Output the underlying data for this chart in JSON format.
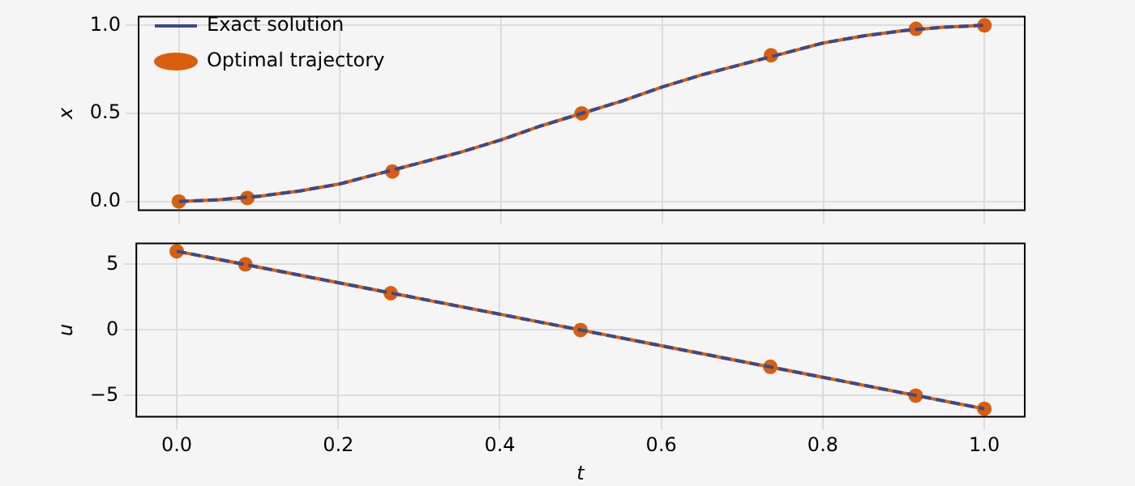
{
  "chart_data": [
    {
      "type": "line",
      "ylabel": "x",
      "xlim": [
        -0.05,
        1.05
      ],
      "xticks": [
        0,
        0.2,
        0.4,
        0.6,
        0.8,
        1
      ],
      "ylim": [
        -0.05,
        1.05
      ],
      "yticks": [
        {
          "value": 0,
          "label": "0.0"
        },
        {
          "value": 0.5,
          "label": "0.5"
        },
        {
          "value": 1,
          "label": "1.0"
        }
      ],
      "grid": true,
      "legend": "top left",
      "tick_labels": "y",
      "series": [
        {
          "type": "line",
          "color": "#d95f0e",
          "line_style": "solid",
          "marker": "none",
          "x": [
            0,
            0.05,
            0.1,
            0.15,
            0.2,
            0.25,
            0.3,
            0.35,
            0.4,
            0.45,
            0.5,
            0.55,
            0.6,
            0.65,
            0.7,
            0.75,
            0.8,
            0.85,
            0.9,
            0.95,
            1
          ],
          "values": [
            0,
            0.01,
            0.03,
            0.06,
            0.1,
            0.16,
            0.22,
            0.28,
            0.35,
            0.43,
            0.5,
            0.57,
            0.65,
            0.72,
            0.78,
            0.84,
            0.9,
            0.94,
            0.97,
            0.99,
            1
          ]
        },
        {
          "type": "scatter",
          "name": "Optimal trajectory",
          "color": "#d95f0e",
          "marker": "circle",
          "x": [
            0,
            0.085,
            0.265,
            0.5,
            0.735,
            0.915,
            1
          ],
          "values": [
            0,
            0.02,
            0.17,
            0.5,
            0.83,
            0.98,
            1
          ]
        },
        {
          "type": "line",
          "name": "Exact solution",
          "color": "#3a4a8c",
          "line_style": "dashed",
          "marker": "none",
          "x": [
            0,
            0.05,
            0.1,
            0.15,
            0.2,
            0.25,
            0.3,
            0.35,
            0.4,
            0.45,
            0.5,
            0.55,
            0.6,
            0.65,
            0.7,
            0.75,
            0.8,
            0.85,
            0.9,
            0.95,
            1
          ],
          "values": [
            0,
            0.01,
            0.03,
            0.06,
            0.1,
            0.16,
            0.22,
            0.28,
            0.35,
            0.43,
            0.5,
            0.57,
            0.65,
            0.72,
            0.78,
            0.84,
            0.9,
            0.94,
            0.97,
            0.99,
            1
          ]
        }
      ]
    },
    {
      "type": "line",
      "xlabel": "t",
      "ylabel": "u",
      "xlim": [
        -0.05,
        1.05
      ],
      "xticks": [
        {
          "value": 0,
          "label": "0.0"
        },
        {
          "value": 0.2,
          "label": "0.2"
        },
        {
          "value": 0.4,
          "label": "0.4"
        },
        {
          "value": 0.6,
          "label": "0.6"
        },
        {
          "value": 0.8,
          "label": "0.8"
        },
        {
          "value": 1,
          "label": "1.0"
        }
      ],
      "ylim": [
        -6.6,
        6.6
      ],
      "yticks": [
        {
          "value": -5,
          "label": "−5"
        },
        0,
        5
      ],
      "grid": true,
      "series": [
        {
          "type": "line",
          "color": "#d95f0e",
          "line_style": "solid",
          "marker": "none",
          "x": [
            0,
            1
          ],
          "values": [
            6,
            -6
          ]
        },
        {
          "type": "scatter",
          "color": "#d95f0e",
          "marker": "circle",
          "x": [
            0,
            0.085,
            0.265,
            0.5,
            0.735,
            0.915,
            1
          ],
          "values": [
            6,
            5,
            2.8,
            0,
            -2.8,
            -5,
            -6
          ]
        },
        {
          "type": "line",
          "color": "#3a4a8c",
          "line_style": "dashed",
          "marker": "none",
          "x": [
            0,
            1
          ],
          "values": [
            6,
            -6
          ]
        }
      ]
    }
  ]
}
